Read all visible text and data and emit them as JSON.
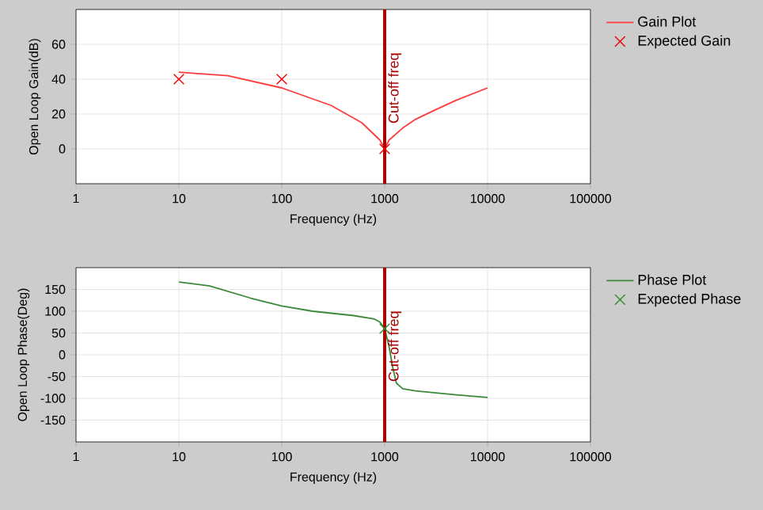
{
  "chart_data": [
    {
      "type": "line",
      "xlabel": "Frequency (Hz)",
      "ylabel": "Open Loop Gain(dB)",
      "log": "x",
      "grid": true,
      "legend": "right",
      "xlim": [
        1,
        100000
      ],
      "xticks": [
        1,
        10,
        100,
        1000,
        10000,
        100000
      ],
      "ylim": [
        -20,
        80
      ],
      "yticks": [
        0,
        20,
        40,
        60
      ],
      "series": [
        {
          "name": "Gain Plot",
          "color": "#ff3b3b",
          "x": [
            10,
            30,
            100,
            300,
            600,
            900,
            1000,
            1100,
            1500,
            2000,
            3000,
            5000,
            10000
          ],
          "values": [
            44,
            42,
            35,
            25,
            15,
            5,
            0,
            5,
            12,
            17,
            22,
            28,
            35
          ]
        },
        {
          "name": "Expected Gain",
          "type": "scatter",
          "marker": "cross",
          "color": "#ee0000",
          "x": [
            10,
            100,
            1000
          ],
          "values": [
            40,
            40,
            0
          ]
        }
      ],
      "ref_lines": [
        {
          "axis": "x",
          "value": 1000,
          "label": "Cut-off freq",
          "color": "#aa0000"
        }
      ]
    },
    {
      "type": "line",
      "xlabel": "Frequency (Hz)",
      "ylabel": "Open Loop Phase(Deg)",
      "log": "x",
      "grid": true,
      "legend": "right",
      "xlim": [
        1,
        100000
      ],
      "xticks": [
        1,
        10,
        100,
        1000,
        10000,
        100000
      ],
      "ylim": [
        -200,
        200
      ],
      "yticks": [
        -150,
        -100,
        -50,
        0,
        50,
        100,
        150
      ],
      "series": [
        {
          "name": "Phase Plot",
          "color": "#3a8a3a",
          "x": [
            10,
            20,
            50,
            100,
            200,
            500,
            800,
            900,
            1000,
            1100,
            1200,
            1300,
            1500,
            2000,
            5000,
            10000
          ],
          "values": [
            167,
            158,
            130,
            112,
            100,
            90,
            82,
            75,
            60,
            20,
            -30,
            -65,
            -78,
            -83,
            -92,
            -98
          ]
        },
        {
          "name": "Expected Phase",
          "type": "scatter",
          "marker": "cross",
          "color": "#2e8b2e",
          "x": [
            1000
          ],
          "values": [
            60
          ]
        }
      ],
      "ref_lines": [
        {
          "axis": "x",
          "value": 1000,
          "label": "Cut-off freq",
          "color": "#aa0000"
        }
      ]
    }
  ]
}
